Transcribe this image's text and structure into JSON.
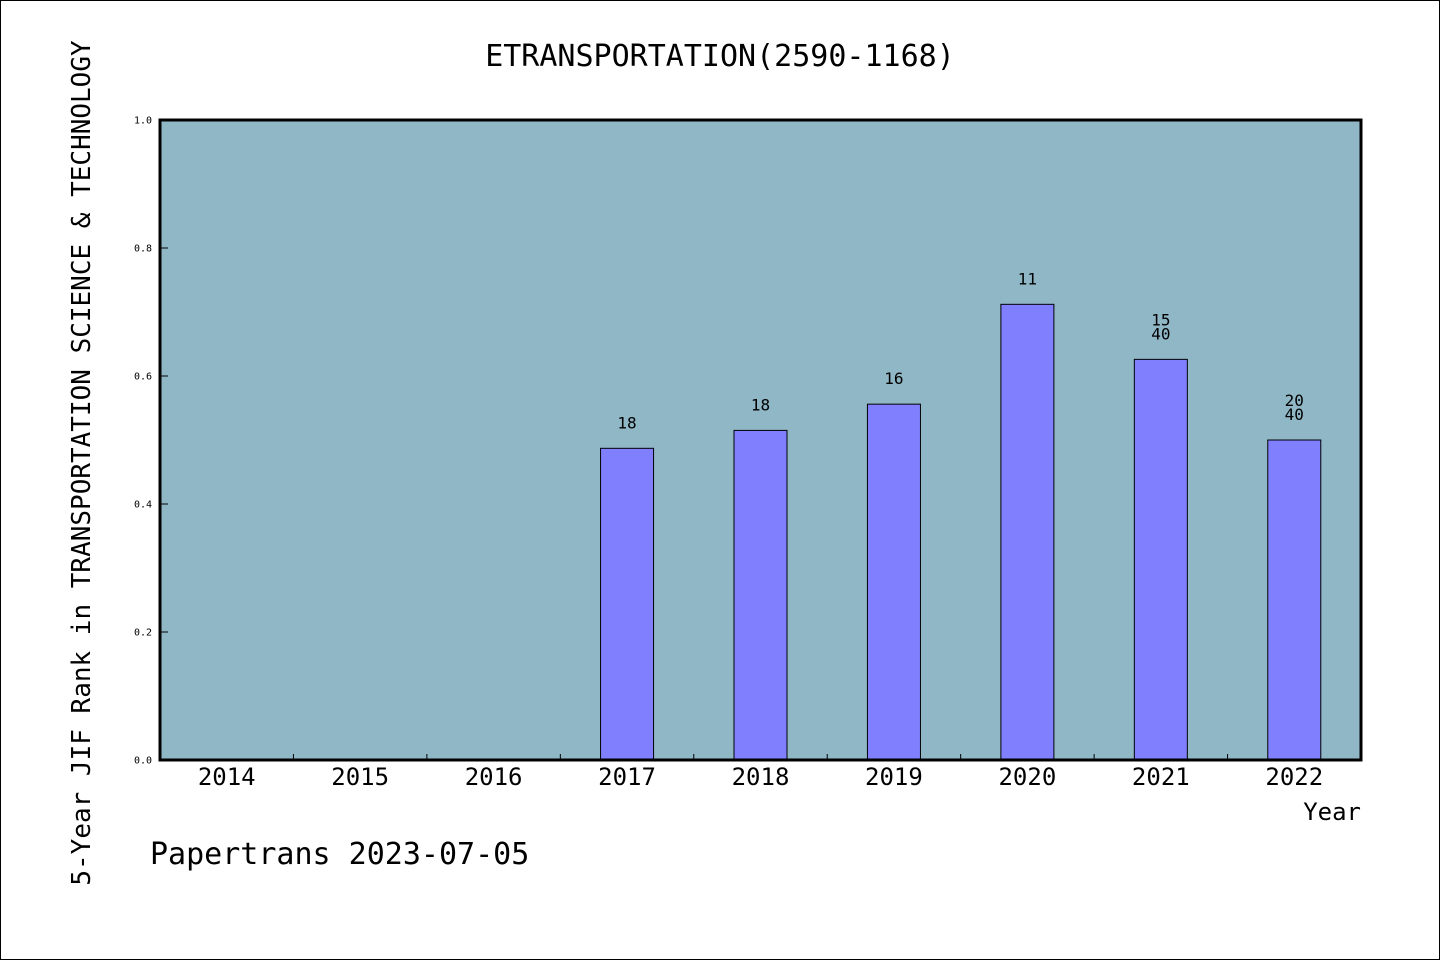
{
  "chart_data": {
    "type": "bar",
    "title": "ETRANSPORTATION(2590-1168)",
    "xlabel": "Year",
    "ylabel": "5-Year JIF Rank in TRANSPORTATION SCIENCE & TECHNOLOGY",
    "ylim": [
      0,
      1.0
    ],
    "yticks": [
      "0.0",
      "0.2",
      "0.4",
      "0.6",
      "0.8",
      "1.0"
    ],
    "categories": [
      "2014",
      "2015",
      "2016",
      "2017",
      "2018",
      "2019",
      "2020",
      "2021",
      "2022"
    ],
    "values": [
      null,
      null,
      null,
      0.487,
      0.515,
      0.556,
      0.712,
      0.626,
      0.5
    ],
    "bar_labels": [
      [],
      [],
      [],
      [
        "18"
      ],
      [
        "18"
      ],
      [
        "16"
      ],
      [
        "11"
      ],
      [
        "15",
        "40"
      ],
      [
        "20",
        "40"
      ]
    ],
    "grid": false,
    "colors": {
      "plot_background": "#8fb7c6",
      "bar_fill": "#8080ff",
      "bar_stroke": "#000000",
      "axis": "#000000"
    }
  },
  "footer": "Papertrans 2023-07-05"
}
